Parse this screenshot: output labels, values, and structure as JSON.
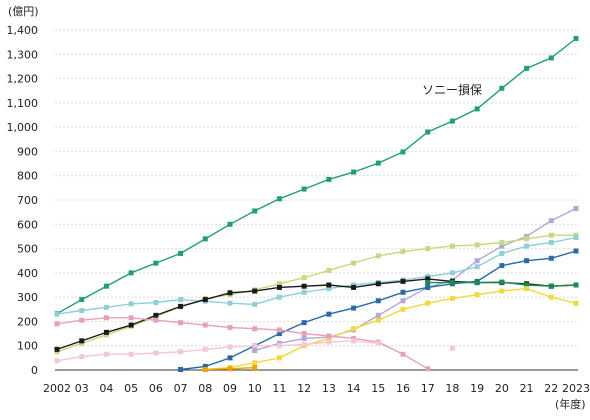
{
  "chart_data": {
    "type": "line",
    "y_unit_label": "(億円)",
    "x_unit_label": "(年度)",
    "x": [
      "2002",
      "03",
      "04",
      "05",
      "06",
      "07",
      "08",
      "09",
      "10",
      "11",
      "12",
      "13",
      "14",
      "15",
      "16",
      "17",
      "18",
      "19",
      "20",
      "21",
      "22",
      "2023"
    ],
    "ylim": [
      0,
      1400
    ],
    "yticks": [
      0,
      100,
      200,
      300,
      400,
      500,
      600,
      700,
      800,
      900,
      1000,
      1100,
      1200,
      1300,
      1400
    ],
    "ytick_labels": [
      "0",
      "100",
      "200",
      "300",
      "400",
      "500",
      "600",
      "700",
      "800",
      "900",
      "1,000",
      "1,100",
      "1,200",
      "1,300",
      "1,400"
    ],
    "grid": "horizontal",
    "annotation": "ソニー損保",
    "series": [
      {
        "color": "#1f9e78",
        "values": [
          232,
          290,
          345,
          400,
          440,
          480,
          540,
          600,
          655,
          705,
          745,
          785,
          815,
          852,
          898,
          980,
          1025,
          1075,
          1160,
          1242,
          1285,
          1365
        ]
      },
      {
        "color": "#b0a8d8",
        "values": [
          null,
          null,
          null,
          null,
          null,
          null,
          null,
          null,
          80,
          110,
          130,
          135,
          165,
          225,
          285,
          340,
          370,
          450,
          510,
          550,
          615,
          665
        ]
      },
      {
        "color": "#c5da7e",
        "values": [
          75,
          110,
          145,
          180,
          220,
          260,
          295,
          310,
          330,
          355,
          380,
          410,
          440,
          470,
          488,
          500,
          510,
          515,
          525,
          540,
          555,
          555
        ]
      },
      {
        "color": "#8fcfd8",
        "values": [
          230,
          245,
          258,
          272,
          278,
          290,
          283,
          275,
          270,
          300,
          320,
          335,
          350,
          360,
          370,
          385,
          400,
          425,
          480,
          510,
          525,
          545
        ]
      },
      {
        "color": "#2a6aa8",
        "values": [
          null,
          null,
          null,
          null,
          null,
          2,
          15,
          50,
          100,
          150,
          195,
          230,
          255,
          285,
          320,
          340,
          355,
          365,
          430,
          450,
          460,
          490
        ]
      },
      {
        "color": "#1a1a1a",
        "values": [
          85,
          120,
          155,
          185,
          225,
          262,
          290,
          318,
          325,
          340,
          345,
          350,
          340,
          355,
          365,
          375,
          365,
          360,
          360,
          355,
          345,
          350
        ]
      },
      {
        "color": "#1a8c52",
        "values": [
          null,
          null,
          null,
          null,
          null,
          null,
          null,
          null,
          null,
          null,
          null,
          null,
          null,
          null,
          null,
          360,
          360,
          360,
          362,
          350,
          345,
          350
        ]
      },
      {
        "color": "#f3d93e",
        "values": [
          null,
          null,
          null,
          null,
          null,
          null,
          2,
          10,
          30,
          50,
          100,
          130,
          170,
          205,
          250,
          275,
          295,
          310,
          325,
          335,
          300,
          275
        ]
      },
      {
        "color": "#e8a0b8",
        "values": [
          190,
          205,
          215,
          215,
          205,
          195,
          185,
          175,
          170,
          165,
          150,
          140,
          130,
          115,
          65,
          5,
          null,
          null,
          null,
          null,
          null,
          null
        ]
      },
      {
        "color": "#f5c6d8",
        "values": [
          38,
          55,
          65,
          65,
          70,
          75,
          85,
          95,
          100,
          100,
          105,
          115,
          120,
          110,
          null,
          null,
          90,
          null,
          null,
          null,
          null,
          null
        ]
      },
      {
        "color": "#f1a000",
        "values": [
          null,
          null,
          null,
          null,
          null,
          null,
          2,
          5,
          10,
          null,
          null,
          null,
          null,
          null,
          null,
          null,
          null,
          null,
          null,
          null,
          null,
          null
        ]
      }
    ]
  }
}
